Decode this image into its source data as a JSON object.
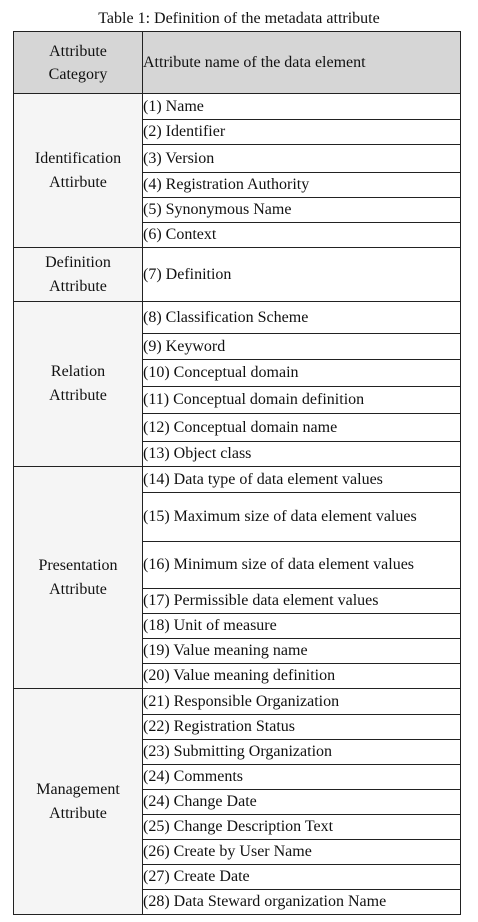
{
  "caption": "Table 1: Definition of the metadata attribute",
  "header": {
    "category": [
      "Attribute",
      "Category"
    ],
    "name": "Attribute name of the data element"
  },
  "groups": [
    {
      "category": [
        "Identification",
        "Attirbute"
      ],
      "items": [
        "(1) Name",
        "(2) Identifier",
        "(3) Version",
        "(4) Registration Authority",
        "(5) Synonymous Name",
        "(6) Context"
      ]
    },
    {
      "category": [
        "Definition",
        "Attribute"
      ],
      "items": [
        "(7) Definition"
      ]
    },
    {
      "category": [
        "Relation",
        "Attribute"
      ],
      "items": [
        "(8) Classification Scheme",
        "(9) Keyword",
        "(10) Conceptual domain",
        "(11) Conceptual domain definition",
        "(12) Conceptual domain name",
        "(13) Object class"
      ]
    },
    {
      "category": [
        "Presentation",
        "Attribute"
      ],
      "items": [
        "(14) Data type of data element values",
        "(15) Maximum size of data element values",
        "(16) Minimum size of data element values",
        "(17) Permissible data element values",
        "(18) Unit of measure",
        "(19) Value meaning name",
        "(20) Value meaning definition"
      ]
    },
    {
      "category": [
        "Management",
        "Attribute"
      ],
      "items": [
        "(21) Responsible Organization",
        "(22) Registration Status",
        "(23) Submitting Organization",
        "(24) Comments",
        "(24) Change Date",
        "(25) Change Description Text",
        "(26) Create by User Name",
        "(27) Create Date",
        "(28) Data Steward organization Name"
      ]
    }
  ]
}
